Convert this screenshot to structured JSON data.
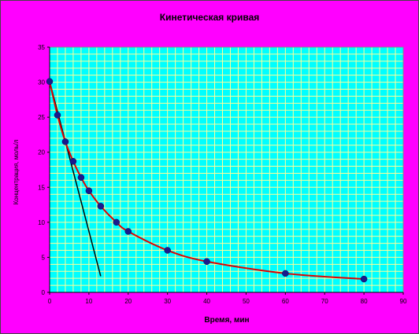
{
  "chart_data": {
    "type": "scatter",
    "title": "Кинетическая кривая",
    "xlabel": "Время, мин",
    "ylabel": "Концентрация, моль/л",
    "xlim": [
      0,
      90
    ],
    "ylim": [
      0,
      35
    ],
    "x_major_ticks": [
      0,
      10,
      20,
      30,
      40,
      50,
      60,
      70,
      80,
      90
    ],
    "y_major_ticks": [
      0,
      5,
      10,
      15,
      20,
      25,
      30,
      35
    ],
    "x_minor_step": 2,
    "y_minor_step": 1,
    "grid": true,
    "legend": "none",
    "series": [
      {
        "x": [
          0,
          2,
          4,
          6,
          8,
          10,
          13,
          17,
          20,
          30,
          40,
          60,
          80
        ],
        "y": [
          30.1,
          25.3,
          21.5,
          18.7,
          16.4,
          14.5,
          12.3,
          10.0,
          8.7,
          6.0,
          4.4,
          2.7,
          1.9
        ],
        "marker": "circle",
        "marker_color": "#1a1a8c",
        "line_color": "#e00000",
        "smooth": true
      }
    ],
    "tangent_line": {
      "x": [
        0,
        13
      ],
      "y": [
        30.1,
        2.3
      ],
      "color": "#000000"
    },
    "colors": {
      "outer": "#ff00ff",
      "plot_bg": "#00ffff",
      "grid": "#ffff99"
    }
  }
}
